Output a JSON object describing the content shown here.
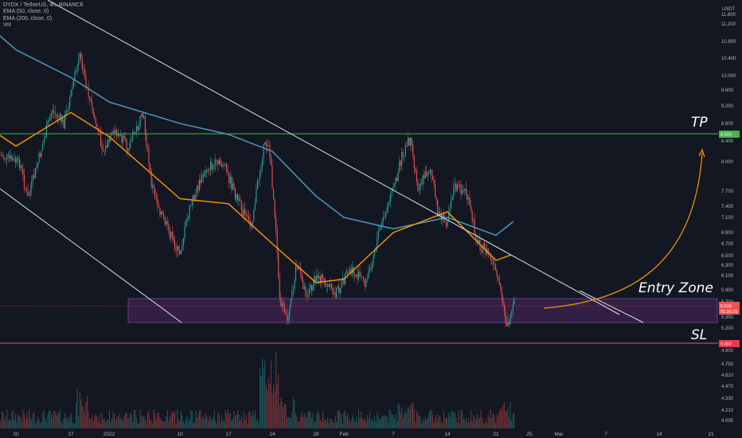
{
  "header": {
    "symbol_line": "DYDX / TetherUS, 4h, BINANCE",
    "ema50": "EMA (50, close, 0)",
    "ema200": "EMA (200, close, 0)",
    "vol": "Vol"
  },
  "axis": {
    "currency": "USDT",
    "price_ticks": [
      "11.600",
      "11.200",
      "10.800",
      "10.400",
      "10.000",
      "9.600",
      "9.200",
      "8.800",
      "8.400",
      "8.000",
      "7.700",
      "7.400",
      "7.100",
      "6.900",
      "6.700",
      "6.500",
      "6.300",
      "6.100",
      "5.900",
      "5.700",
      "5.350",
      "5.200",
      "4.900",
      "4.750",
      "4.610",
      "4.470",
      "4.330",
      "4.210",
      "4.095"
    ],
    "x_ticks": [
      "20",
      "27",
      "2022",
      "10",
      "17",
      "24",
      "28",
      "Feb",
      "7",
      "14",
      "21",
      "25",
      "Mar",
      "7",
      "14",
      "21"
    ]
  },
  "price_tags": {
    "tp": "8.500",
    "current": "5.518",
    "countdown": "01:36:29",
    "sl": "5.000"
  },
  "annotations": {
    "tp": "TP",
    "entry": "Entry Zone",
    "sl": "SL"
  },
  "colors": {
    "background": "#131722",
    "up": "#26a69a",
    "down": "#ef5350",
    "ema50": "#ff9800",
    "ema200": "#4a90b8",
    "tp_line": "#4caf50",
    "sl_line": "#f23645",
    "entry_zone": "#5a2a6e",
    "channel": "#e0e3eb",
    "arrow": "#ff9800"
  },
  "chart_data": {
    "type": "candlestick",
    "timeframe": "4h",
    "series": [
      {
        "name": "EMA (50, close, 0)",
        "x": [
          "20",
          "27",
          "2022",
          "10",
          "17",
          "24",
          "28",
          "Feb",
          "7",
          "14",
          "21"
        ],
        "values": [
          8.3,
          9.05,
          8.5,
          7.55,
          7.45,
          6.7,
          6.0,
          6.05,
          6.9,
          7.25,
          6.4
        ]
      },
      {
        "name": "EMA (200, close, 0)",
        "x": [
          "20",
          "27",
          "2022",
          "10",
          "17",
          "24",
          "28",
          "Feb",
          "7",
          "14",
          "21"
        ],
        "values": [
          10.6,
          9.95,
          9.3,
          8.8,
          8.55,
          8.2,
          7.6,
          7.1,
          6.95,
          7.1,
          6.85
        ]
      }
    ],
    "levels": {
      "tp": 8.5,
      "sl": 5.0,
      "current": 5.518,
      "entry_zone": [
        5.3,
        5.62
      ]
    },
    "ylim": [
      4.05,
      11.8
    ]
  }
}
